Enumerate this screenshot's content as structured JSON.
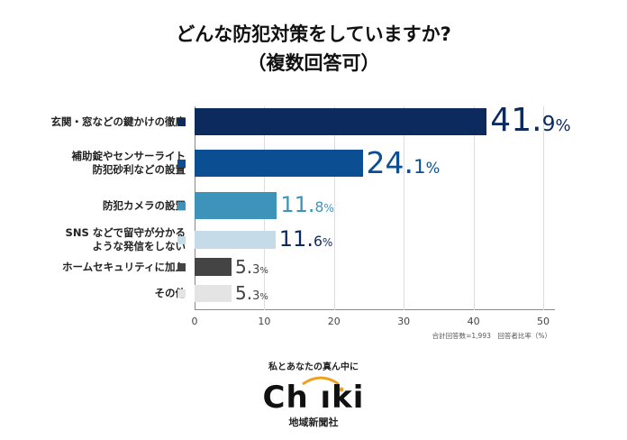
{
  "title": "どんな防犯対策をしていますか?",
  "subtitle": "（複数回答可）",
  "chart_data": {
    "type": "bar",
    "orientation": "horizontal",
    "categories": [
      "玄関・窓などの鍵かけの徹底",
      "補助錠やセンサーライト\n防犯砂利などの設置",
      "防犯カメラの設置",
      "SNS などで留守が分かる\nような発信をしない",
      "ホームセキュリティに加入",
      "その他"
    ],
    "values": [
      41.9,
      24.1,
      11.8,
      11.6,
      5.3,
      5.3
    ],
    "colors": [
      "#0c2a5e",
      "#0b4f92",
      "#3d93b9",
      "#c5dce8",
      "#444444",
      "#e4e4e4"
    ],
    "label_colors": [
      "#0c2a5e",
      "#0b4f92",
      "#3d93b9",
      "#0c2a5e",
      "#444444",
      "#444444"
    ],
    "xlim": [
      0,
      50
    ],
    "xticks": [
      0,
      10,
      20,
      30,
      40,
      50
    ],
    "grid": true,
    "note": "合計回答数=1,993　回答者比率（%）"
  },
  "footer": {
    "tagline": "私とあなたの真ん中に",
    "logo": "Chiiki",
    "company": "地域新聞社"
  }
}
